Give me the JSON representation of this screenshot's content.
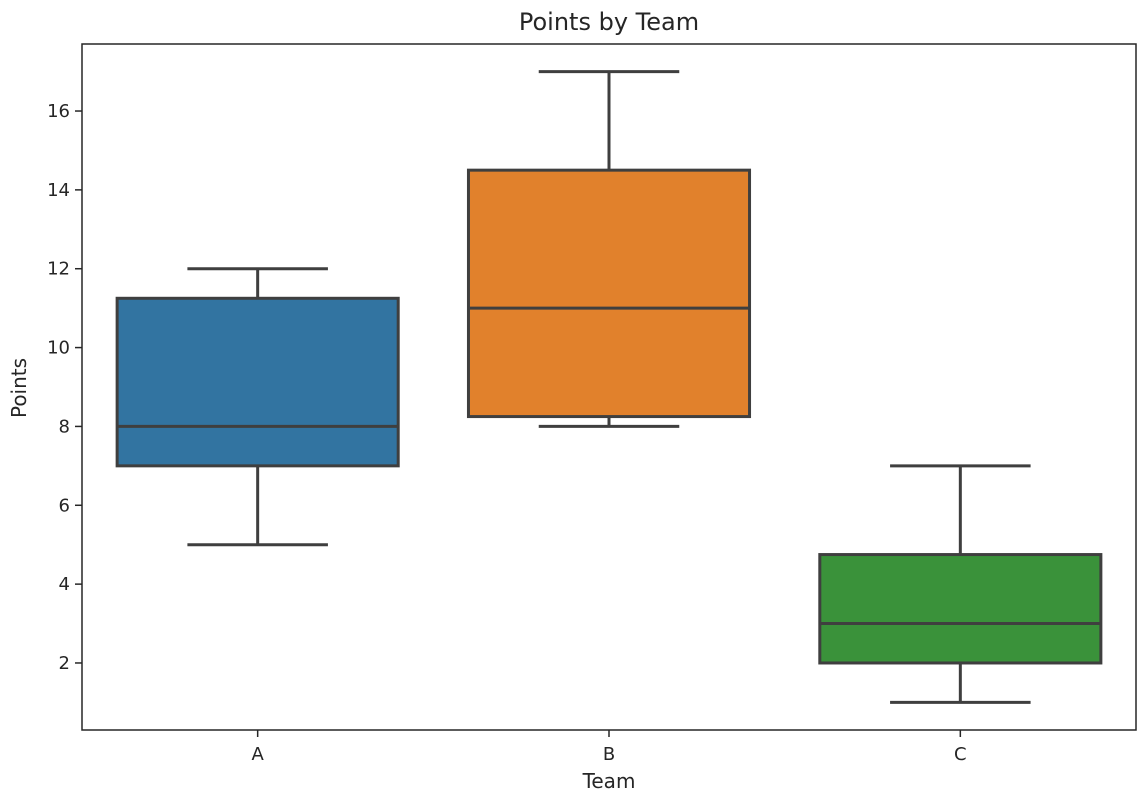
{
  "chart_data": {
    "type": "box",
    "title": "Points by Team",
    "xlabel": "Team",
    "ylabel": "Points",
    "ylim": [
      0.3,
      17.7
    ],
    "yticks": [
      2,
      4,
      6,
      8,
      10,
      12,
      14,
      16
    ],
    "categories": [
      "A",
      "B",
      "C"
    ],
    "boxes": [
      {
        "category": "A",
        "min": 5,
        "q1": 7,
        "median": 8,
        "q3": 11.25,
        "max": 12,
        "color": "#3274a1"
      },
      {
        "category": "B",
        "min": 8,
        "q1": 8.25,
        "median": 11,
        "q3": 14.5,
        "max": 17,
        "color": "#e1812c"
      },
      {
        "category": "C",
        "min": 1,
        "q1": 2,
        "median": 3,
        "q3": 4.75,
        "max": 7,
        "color": "#3a923a"
      }
    ],
    "grid": false,
    "legend": "none"
  }
}
